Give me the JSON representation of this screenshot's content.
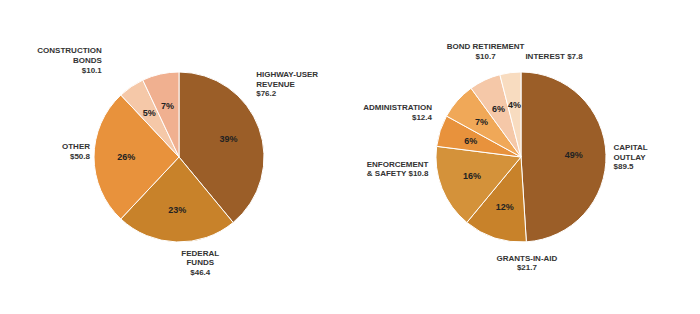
{
  "chart_data": [
    {
      "type": "pie",
      "categories": [
        "HIGHWAY-USER\nREVENUE\n$76.2",
        "FEDERAL\nFUNDS\n$46.4",
        "OTHER\n$50.8",
        "CONSTRUCTION\nBONDS\n$10.1",
        null
      ],
      "values": [
        39,
        23,
        26,
        5,
        7
      ],
      "value_labels": [
        "39%",
        "23%",
        "26%",
        "5%",
        "7%"
      ],
      "colors": [
        "#9B5E28",
        "#C8822A",
        "#E8923C",
        "#F5C8A8",
        "#F0B090"
      ],
      "data_labels": true
    },
    {
      "type": "pie",
      "categories": [
        "CAPITAL\nOUTLAY\n$89.5",
        "GRANTS-IN-AID\n$21.7",
        null,
        "ENFORCEMENT\n& SAFETY $10.8",
        "ADMINISTRATION\n$12.4",
        "BOND RETIREMENT\n$10.7",
        "INTEREST $7.8"
      ],
      "values": [
        49,
        12,
        16,
        6,
        7,
        6,
        4
      ],
      "value_labels": [
        "49%",
        "12%",
        "16%",
        "6%",
        "7%",
        "6%",
        "4%"
      ],
      "colors": [
        "#9B5E28",
        "#C8822A",
        "#D4923A",
        "#E8923C",
        "#F0A858",
        "#F5C8A8",
        "#F8DCC0"
      ],
      "data_labels": true
    }
  ]
}
